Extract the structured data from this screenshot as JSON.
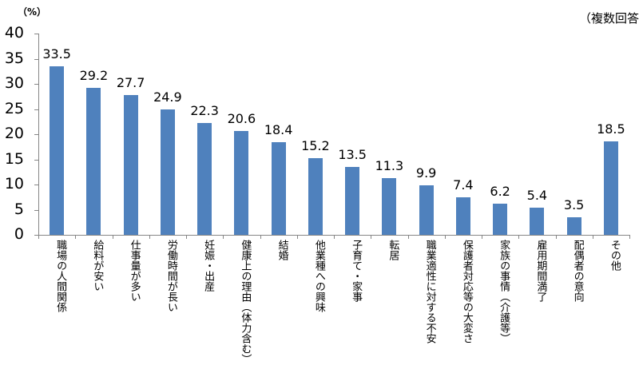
{
  "chart_data": {
    "type": "bar",
    "title": "",
    "unit_label": "（%）",
    "note": "（複数回答",
    "xlabel": "",
    "ylabel": "（%）",
    "ylim": [
      0,
      40
    ],
    "yticks": [
      0,
      5,
      10,
      15,
      20,
      25,
      30,
      35,
      40
    ],
    "grid": false,
    "legend": null,
    "bar_color": "#4F81BD",
    "categories": [
      "職場の人間関係",
      "給料が安い",
      "仕事量が多い",
      "労働時間が長い",
      "妊娠・出産",
      "健康上の理由（体力含む）",
      "結婚",
      "他業種への興味",
      "子育て・家事",
      "転居",
      "職業適性に対する不安",
      "保護者対応等の大変さ",
      "家族の事情（介護等）",
      "雇用期間満了",
      "配偶者の意向",
      "その他"
    ],
    "values": [
      33.5,
      29.2,
      27.7,
      24.9,
      22.3,
      20.6,
      18.4,
      15.2,
      13.5,
      11.3,
      9.9,
      7.4,
      6.2,
      5.4,
      3.5,
      18.5
    ],
    "value_labels": [
      "33.5",
      "29.2",
      "27.7",
      "24.9",
      "22.3",
      "20.6",
      "18.4",
      "15.2",
      "13.5",
      "11.3",
      "9.9",
      "7.4",
      "6.2",
      "5.4",
      "3.5",
      "18.5"
    ]
  }
}
